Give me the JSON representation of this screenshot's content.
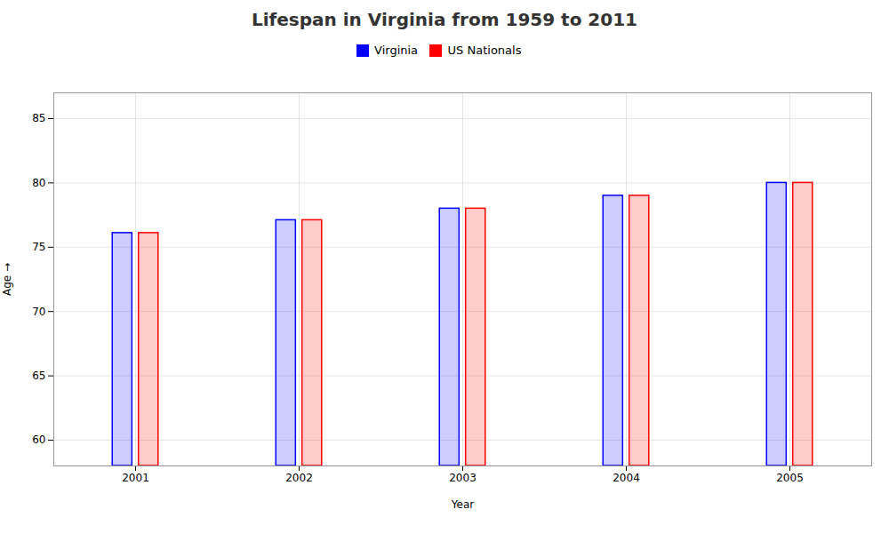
{
  "chart_data": {
    "type": "bar",
    "title": "Lifespan in Virginia from 1959 to 2011",
    "xlabel": "Year",
    "ylabel": "Age",
    "categories": [
      "2001",
      "2002",
      "2003",
      "2004",
      "2005"
    ],
    "series": [
      {
        "name": "Virginia",
        "color": "#0000ff",
        "values": [
          76.1,
          77.1,
          78.0,
          79.0,
          80.0
        ]
      },
      {
        "name": "US Nationals",
        "color": "#ff0000",
        "values": [
          76.1,
          77.1,
          78.0,
          79.0,
          80.0
        ]
      }
    ],
    "ylim": [
      58,
      87
    ],
    "yticks": [
      60,
      65,
      70,
      75,
      80,
      85
    ],
    "grid": true,
    "legend": "top"
  }
}
